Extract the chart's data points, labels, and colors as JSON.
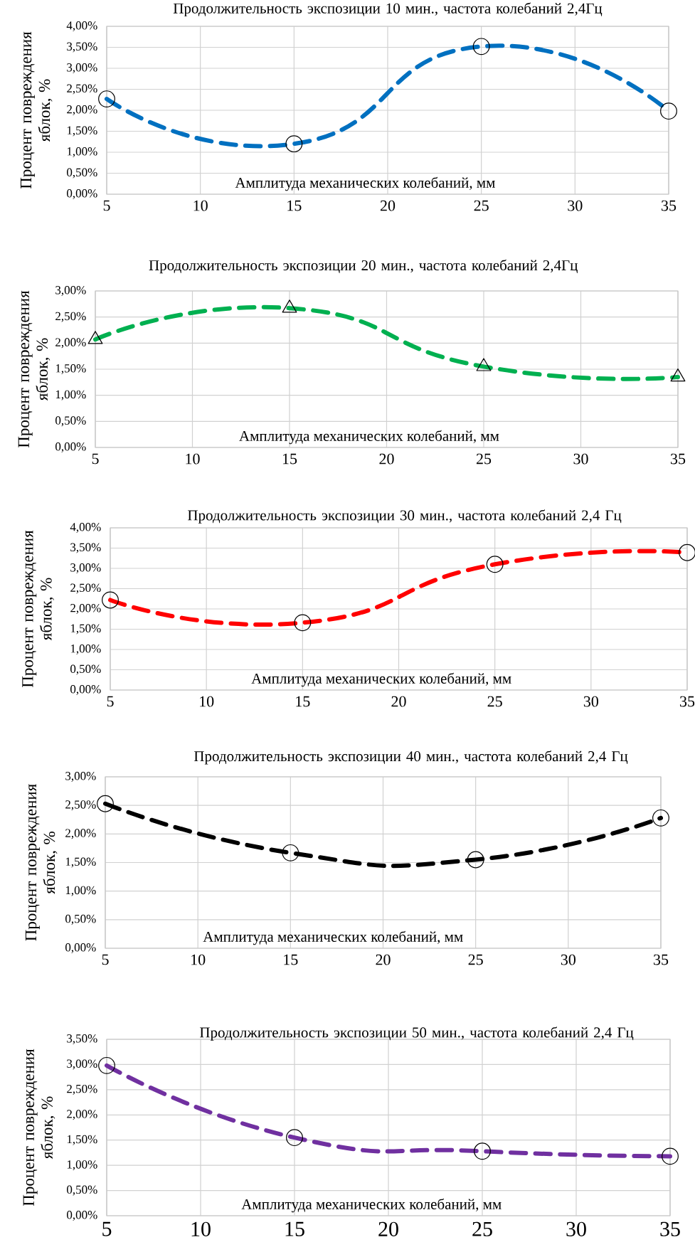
{
  "chart_data": [
    {
      "type": "line",
      "title": "Продолжительность экспозиции 10 мин., частота колебаний 2,4Гц",
      "xlabel": "Амплитуда механических колебаний, мм",
      "ylabel": "Процент повреждения яблок, %",
      "x": [
        5,
        15,
        25,
        35
      ],
      "series": [
        {
          "color": "#0070c0",
          "values": [
            2.27,
            1.2,
            3.52,
            1.98
          ]
        }
      ],
      "xlim": [
        5,
        35
      ],
      "xticks": [
        5,
        10,
        15,
        20,
        25,
        30,
        35
      ],
      "ylim": [
        0,
        4
      ],
      "yticks": [
        {
          "value": 0,
          "label": "0,00%"
        },
        {
          "value": 0.5,
          "label": "0,50%"
        },
        {
          "value": 1,
          "label": "1,00%"
        },
        {
          "value": 1.5,
          "label": "1,50%"
        },
        {
          "value": 2,
          "label": "2,00%"
        },
        {
          "value": 2.5,
          "label": "2,50%"
        },
        {
          "value": 3,
          "label": "3,00%"
        },
        {
          "value": 3.5,
          "label": "3,50%"
        },
        {
          "value": 4,
          "label": "4,00%"
        }
      ],
      "grid": true,
      "marker": "circle",
      "line_style": "dashed"
    },
    {
      "type": "line",
      "title": "Продолжительность экспозиции 20 мин., частота колебаний 2,4Гц",
      "xlabel": "Амплитуда механических колебаний, мм",
      "ylabel": "Процент повреждения яблок, %",
      "x": [
        5,
        15,
        25,
        35
      ],
      "series": [
        {
          "color": "#00b050",
          "values": [
            2.07,
            2.67,
            1.55,
            1.35
          ]
        }
      ],
      "xlim": [
        5,
        35
      ],
      "xticks": [
        5,
        10,
        15,
        20,
        25,
        30,
        35
      ],
      "ylim": [
        0,
        3
      ],
      "yticks": [
        {
          "value": 0,
          "label": "0,00%"
        },
        {
          "value": 0.5,
          "label": "0,50%"
        },
        {
          "value": 1,
          "label": "1,00%"
        },
        {
          "value": 1.5,
          "label": "1,50%"
        },
        {
          "value": 2,
          "label": "2,00%"
        },
        {
          "value": 2.5,
          "label": "2,50%"
        },
        {
          "value": 3,
          "label": "3,00%"
        }
      ],
      "grid": true,
      "marker": "triangle",
      "line_style": "dashed"
    },
    {
      "type": "line",
      "title": "Продолжительность экспозиции 30 мин., частота колебаний 2,4 Гц",
      "xlabel": "Амплитуда механических колебаний, мм",
      "ylabel": "Процент повреждения яблок, %",
      "x": [
        5,
        15,
        25,
        35
      ],
      "series": [
        {
          "color": "#ff0000",
          "values": [
            2.22,
            1.66,
            3.1,
            3.39
          ]
        }
      ],
      "xlim": [
        5,
        35
      ],
      "xticks": [
        5,
        10,
        15,
        20,
        25,
        30,
        35
      ],
      "ylim": [
        0,
        4
      ],
      "yticks": [
        {
          "value": 0,
          "label": "0,00%"
        },
        {
          "value": 0.5,
          "label": "0,50%"
        },
        {
          "value": 1,
          "label": "1,00%"
        },
        {
          "value": 1.5,
          "label": "1,50%"
        },
        {
          "value": 2,
          "label": "2,00%"
        },
        {
          "value": 2.5,
          "label": "2,50%"
        },
        {
          "value": 3,
          "label": "3,00%"
        },
        {
          "value": 3.5,
          "label": "3,50%"
        },
        {
          "value": 4,
          "label": "4,00%"
        }
      ],
      "grid": true,
      "marker": "circle",
      "line_style": "dashed"
    },
    {
      "type": "line",
      "title": "Продолжительность экспозиции 40 мин., частота колебаний 2,4 Гц",
      "xlabel": "Амплитуда механических колебаний, мм",
      "ylabel": "Процент повреждения яблок, %",
      "x": [
        5,
        15,
        25,
        35
      ],
      "series": [
        {
          "color": "#000000",
          "values": [
            2.53,
            1.67,
            1.55,
            2.28
          ]
        }
      ],
      "xlim": [
        5,
        35
      ],
      "xticks": [
        5,
        10,
        15,
        20,
        25,
        30,
        35
      ],
      "ylim": [
        0,
        3
      ],
      "yticks": [
        {
          "value": 0,
          "label": "0,00%"
        },
        {
          "value": 0.5,
          "label": "0,50%"
        },
        {
          "value": 1,
          "label": "1,00%"
        },
        {
          "value": 1.5,
          "label": "1,50%"
        },
        {
          "value": 2,
          "label": "2,00%"
        },
        {
          "value": 2.5,
          "label": "2,50%"
        },
        {
          "value": 3,
          "label": "3,00%"
        }
      ],
      "grid": true,
      "marker": "circle",
      "line_style": "dashed"
    },
    {
      "type": "line",
      "title": "Продолжительность экспозиции 50 мин., частота колебаний 2,4 Гц",
      "xlabel": "Амплитуда механических колебаний, мм",
      "ylabel": "Процент повреждения яблок, %",
      "x": [
        5,
        15,
        25,
        35
      ],
      "series": [
        {
          "color": "#7030a0",
          "values": [
            2.98,
            1.55,
            1.28,
            1.18
          ]
        }
      ],
      "xlim": [
        5,
        35
      ],
      "xticks": [
        5,
        10,
        15,
        20,
        25,
        30,
        35
      ],
      "ylim": [
        0,
        3.5
      ],
      "yticks": [
        {
          "value": 0,
          "label": "0,00%"
        },
        {
          "value": 0.5,
          "label": "0,50%"
        },
        {
          "value": 1,
          "label": "1,00%"
        },
        {
          "value": 1.5,
          "label": "1,50%"
        },
        {
          "value": 2,
          "label": "2,00%"
        },
        {
          "value": 2.5,
          "label": "2,50%"
        },
        {
          "value": 3,
          "label": "3,00%"
        },
        {
          "value": 3.5,
          "label": "3,50%"
        }
      ],
      "grid": true,
      "marker": "circle",
      "line_style": "dashed"
    }
  ]
}
